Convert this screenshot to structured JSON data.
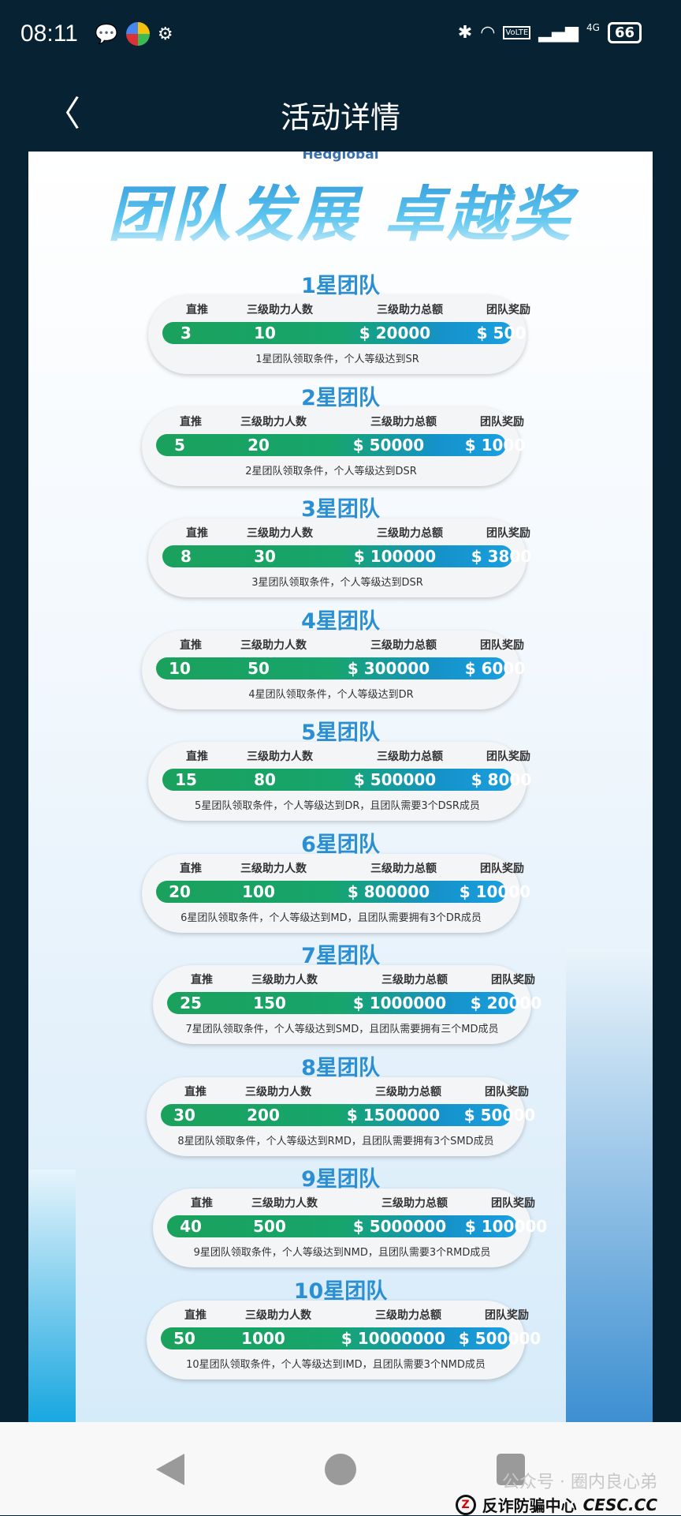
{
  "status_bar": {
    "time": "08:11",
    "battery": "66",
    "network": "4G",
    "volte": "VoLTE"
  },
  "header": {
    "title": "活动详情",
    "back_icon": "chevron-left-icon"
  },
  "poster": {
    "logo": "Hedglobal",
    "title": "团队发展 卓越奖",
    "columns": [
      "直推",
      "三级助力人数",
      "三级助力总额",
      "团队奖励"
    ],
    "tiers": [
      {
        "name": "1星团队",
        "direct": "3",
        "people": "10",
        "total": "$ 20000",
        "reward": "$ 500",
        "condition": "1星团队领取条件，个人等级达到SR"
      },
      {
        "name": "2星团队",
        "direct": "5",
        "people": "20",
        "total": "$ 50000",
        "reward": "$ 1000",
        "condition": "2星团队领取条件，个人等级达到DSR"
      },
      {
        "name": "3星团队",
        "direct": "8",
        "people": "30",
        "total": "$ 100000",
        "reward": "$ 3800",
        "condition": "3星团队领取条件，个人等级达到DSR"
      },
      {
        "name": "4星团队",
        "direct": "10",
        "people": "50",
        "total": "$ 300000",
        "reward": "$ 6000",
        "condition": "4星团队领取条件，个人等级达到DR"
      },
      {
        "name": "5星团队",
        "direct": "15",
        "people": "80",
        "total": "$ 500000",
        "reward": "$ 8000",
        "condition": "5星团队领取条件，个人等级达到DR，且团队需要3个DSR成员"
      },
      {
        "name": "6星团队",
        "direct": "20",
        "people": "100",
        "total": "$ 800000",
        "reward": "$ 10000",
        "condition": "6星团队领取条件，个人等级达到MD，且团队需要拥有3个DR成员"
      },
      {
        "name": "7星团队",
        "direct": "25",
        "people": "150",
        "total": "$ 1000000",
        "reward": "$ 20000",
        "condition": "7星团队领取条件，个人等级达到SMD，且团队需要拥有三个MD成员"
      },
      {
        "name": "8星团队",
        "direct": "30",
        "people": "200",
        "total": "$ 1500000",
        "reward": "$ 50000",
        "condition": "8星团队领取条件，个人等级达到RMD，且团队需要拥有3个SMD成员"
      },
      {
        "name": "9星团队",
        "direct": "40",
        "people": "500",
        "total": "$ 5000000",
        "reward": "$ 100000",
        "condition": "9星团队领取条件，个人等级达到NMD，且团队需要3个RMD成员"
      },
      {
        "name": "10星团队",
        "direct": "50",
        "people": "1000",
        "total": "$ 10000000",
        "reward": "$ 500000",
        "condition": "10星团队领取条件，个人等级达到IMD，且团队需要3个NMD成员"
      }
    ]
  },
  "watermark": {
    "line1": "公众号 · 圈内良心弟",
    "line2": "反诈防骗中心",
    "site": "CESC.CC"
  }
}
